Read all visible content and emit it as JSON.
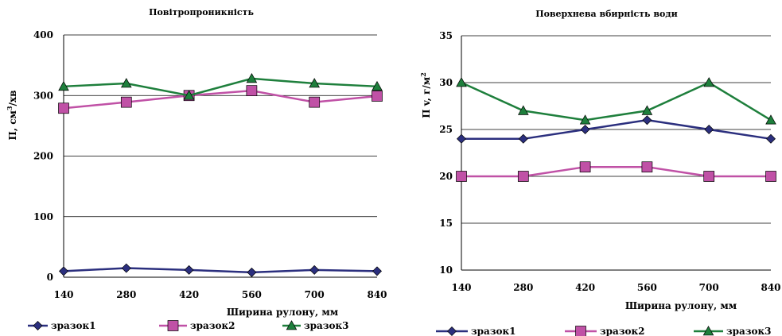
{
  "chart_data": [
    {
      "type": "line",
      "title": "Повітропроникність",
      "xlabel": "Ширина рулону, мм",
      "ylabel": "П, см³/хв",
      "ylabel_main": "П, см",
      "ylabel_sup": "3",
      "ylabel_tail": "/хв",
      "categories": [
        "140",
        "280",
        "420",
        "560",
        "700",
        "840"
      ],
      "ylim": [
        0,
        400
      ],
      "yticks": [
        0,
        100,
        200,
        300,
        400
      ],
      "grid": true,
      "legend_position": "bottom",
      "series": [
        {
          "name": "зразок1",
          "values": [
            10,
            15,
            12,
            8,
            12,
            10
          ],
          "color": "#2b2f7e",
          "marker": "diamond"
        },
        {
          "name": "зразок2",
          "values": [
            279,
            289,
            300,
            308,
            289,
            299
          ],
          "color": "#c051a6",
          "marker": "square"
        },
        {
          "name": "зразок3",
          "values": [
            315,
            320,
            300,
            328,
            320,
            315
          ],
          "color": "#1e7f3c",
          "marker": "triangle"
        }
      ]
    },
    {
      "type": "line",
      "title": "Поверхнева вбирність води",
      "xlabel": "Ширина рулону, мм",
      "ylabel": "П v, г/м²",
      "ylabel_main": "П v, г/м",
      "ylabel_sup": "2",
      "ylabel_tail": "",
      "categories": [
        "140",
        "280",
        "420",
        "560",
        "700",
        "840"
      ],
      "ylim": [
        10,
        35
      ],
      "yticks": [
        10,
        15,
        20,
        25,
        30,
        35
      ],
      "grid": true,
      "legend_position": "bottom",
      "series": [
        {
          "name": "зразок1",
          "values": [
            24,
            24,
            25,
            26,
            25,
            24
          ],
          "color": "#2b2f7e",
          "marker": "diamond"
        },
        {
          "name": "зразок2",
          "values": [
            20,
            20,
            21,
            21,
            20,
            20
          ],
          "color": "#c051a6",
          "marker": "square"
        },
        {
          "name": "зразок3",
          "values": [
            30,
            27,
            26,
            27,
            30,
            26
          ],
          "color": "#1e7f3c",
          "marker": "triangle"
        }
      ]
    }
  ]
}
